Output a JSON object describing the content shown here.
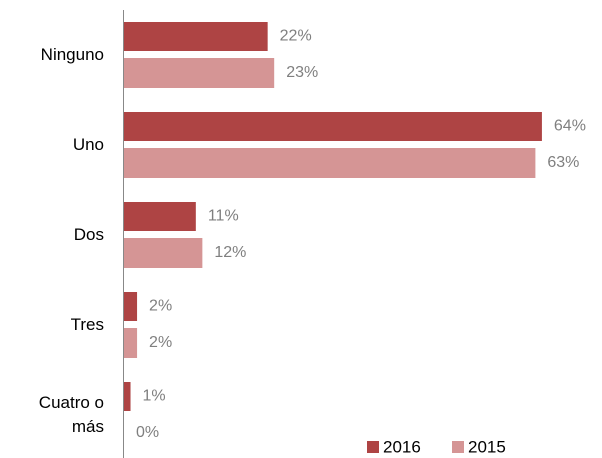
{
  "chart_data": {
    "type": "bar",
    "orientation": "horizontal",
    "categories": [
      "Ninguno",
      "Uno",
      "Dos",
      "Tres",
      "Cuatro o más"
    ],
    "series": [
      {
        "name": "2016",
        "color": "#ae4444",
        "values": [
          22,
          64,
          11,
          2,
          1
        ],
        "value_labels": [
          "22%",
          "64%",
          "11%",
          "2%",
          "1%"
        ]
      },
      {
        "name": "2015",
        "color": "#d59595",
        "values": [
          23,
          63,
          12,
          2,
          0
        ],
        "value_labels": [
          "23%",
          "63%",
          "12%",
          "2%",
          "0%"
        ]
      }
    ],
    "legend": "bottom-right"
  }
}
